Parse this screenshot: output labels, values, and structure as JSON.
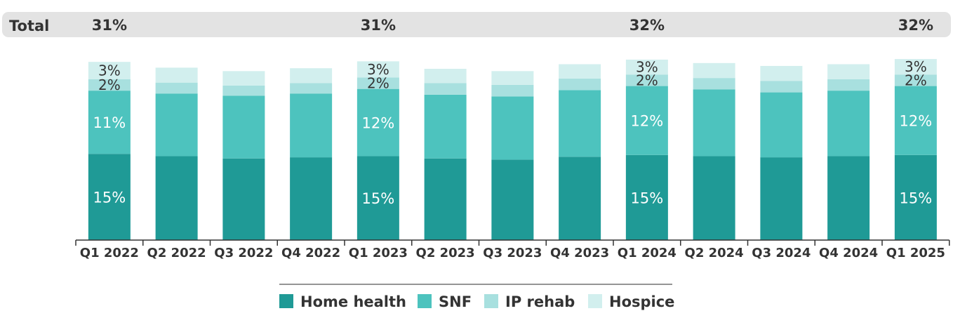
{
  "chart_data": {
    "type": "bar",
    "stacked": true,
    "title": "",
    "xlabel": "",
    "ylabel": "",
    "total_row_label": "Total",
    "categories": [
      "Q1 2022",
      "Q2 2022",
      "Q3 2022",
      "Q4 2022",
      "Q1 2023",
      "Q2 2023",
      "Q3 2023",
      "Q4 2023",
      "Q1 2024",
      "Q2 2024",
      "Q3 2024",
      "Q4 2024",
      "Q1 2025"
    ],
    "series": [
      {
        "name": "Home health",
        "color": "#1f9a96",
        "values": [
          15,
          14.6,
          14.2,
          14.4,
          14.6,
          14.2,
          14.0,
          14.5,
          14.8,
          14.6,
          14.4,
          14.6,
          14.8
        ]
      },
      {
        "name": "SNF",
        "color": "#4dc3be",
        "values": [
          11,
          10.9,
          10.9,
          11.1,
          11.7,
          11.1,
          11.0,
          11.6,
          12.0,
          11.6,
          11.3,
          11.4,
          12.0
        ]
      },
      {
        "name": "IP rehab",
        "color": "#a8e0df",
        "values": [
          2,
          1.9,
          1.8,
          1.8,
          2,
          2.0,
          2.0,
          2.0,
          2.0,
          2.0,
          2.0,
          2.0,
          2.0
        ]
      },
      {
        "name": "Hospice",
        "color": "#d2efee",
        "values": [
          3,
          2.6,
          2.5,
          2.6,
          2.8,
          2.5,
          2.4,
          2.5,
          2.6,
          2.6,
          2.6,
          2.6,
          2.7
        ]
      }
    ],
    "segment_labels": {
      "Q1 2022": [
        "15%",
        "11%",
        "2%",
        "3%"
      ],
      "Q1 2023": [
        "15%",
        "12%",
        "2%",
        "3%"
      ],
      "Q1 2024": [
        "15%",
        "12%",
        "2%",
        "3%"
      ],
      "Q1 2025": [
        "15%",
        "12%",
        "2%",
        "3%"
      ]
    },
    "totals": [
      {
        "category": "Q1 2022",
        "label": "31%"
      },
      {
        "category": "Q1 2023",
        "label": "31%"
      },
      {
        "category": "Q1 2024",
        "label": "32%"
      },
      {
        "category": "Q1 2025",
        "label": "32%"
      }
    ],
    "ylim": [
      0,
      32
    ],
    "grid": false,
    "legend": {
      "position": "bottom",
      "entries": [
        "Home health",
        "SNF",
        "IP rehab",
        "Hospice"
      ]
    }
  }
}
